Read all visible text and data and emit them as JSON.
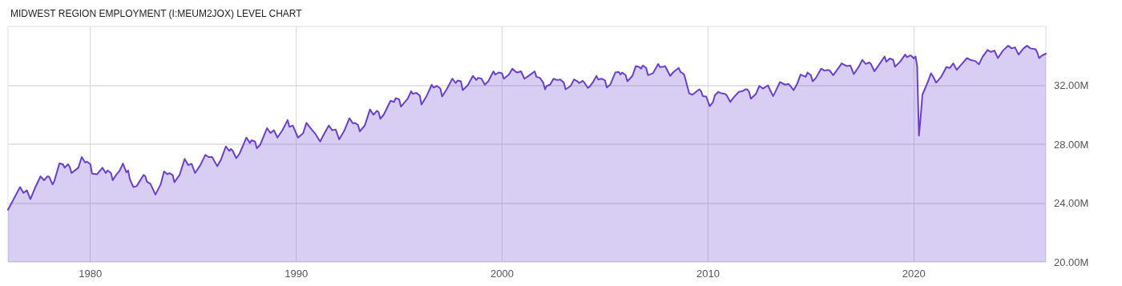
{
  "chart_data": {
    "type": "area",
    "title": "MIDWEST REGION EMPLOYMENT (I:MEUM2JOX) LEVEL CHART",
    "x": [
      "1976-01",
      "1976-08",
      "1976-10",
      "1976-12",
      "1977-02",
      "1977-05",
      "1977-08",
      "1977-10",
      "1977-12",
      "1978-01",
      "1978-03",
      "1978-04",
      "1978-07",
      "1978-09",
      "1978-10",
      "1978-12",
      "1979-01",
      "1979-02",
      "1979-06",
      "1979-08",
      "1979-10",
      "1979-11",
      "1980-01",
      "1980-02",
      "1980-05",
      "1980-08",
      "1980-10",
      "1980-11",
      "1981-01",
      "1981-02",
      "1981-04",
      "1981-06",
      "1981-08",
      "1981-10",
      "1981-11",
      "1981-12",
      "1982-02",
      "1982-04",
      "1982-08",
      "1982-09",
      "1982-10",
      "1982-12",
      "1983-03",
      "1983-06",
      "1983-08",
      "1983-10",
      "1983-11",
      "1984-01",
      "1984-02",
      "1984-05",
      "1984-08",
      "1984-10",
      "1984-12",
      "1985-02",
      "1985-05",
      "1985-08",
      "1985-10",
      "1985-12",
      "1986-01",
      "1986-03",
      "1986-05",
      "1986-08",
      "1986-10",
      "1986-11",
      "1986-12",
      "1987-02",
      "1987-04",
      "1987-08",
      "1987-10",
      "1987-11",
      "1988-01",
      "1988-02",
      "1988-04",
      "1988-08",
      "1988-10",
      "1988-12",
      "1989-02",
      "1989-05",
      "1989-08",
      "1989-09",
      "1989-11",
      "1990-02",
      "1990-05",
      "1990-07",
      "1990-10",
      "1990-12",
      "1991-03",
      "1991-05",
      "1991-08",
      "1991-10",
      "1991-12",
      "1992-02",
      "1992-05",
      "1992-08",
      "1992-10",
      "1992-11",
      "1993-01",
      "1993-02",
      "1993-05",
      "1993-08",
      "1993-10",
      "1993-12",
      "1994-01",
      "1994-02",
      "1994-04",
      "1994-08",
      "1994-10",
      "1994-11",
      "1995-01",
      "1995-02",
      "1995-06",
      "1995-08",
      "1995-09",
      "1995-11",
      "1996-01",
      "1996-02",
      "1996-05",
      "1996-08",
      "1996-09",
      "1996-11",
      "1997-01",
      "1997-02",
      "1997-05",
      "1997-08",
      "1997-10",
      "1997-11",
      "1998-01",
      "1998-02",
      "1998-05",
      "1998-08",
      "1998-10",
      "1998-11",
      "1999-01",
      "1999-03",
      "1999-05",
      "1999-08",
      "1999-09",
      "1999-11",
      "2000-01",
      "2000-02",
      "2000-05",
      "2000-07",
      "2000-09",
      "2000-10",
      "2000-12",
      "2001-02",
      "2001-05",
      "2001-08",
      "2001-09",
      "2001-11",
      "2002-01",
      "2002-02",
      "2002-03",
      "2002-05",
      "2002-07",
      "2002-09",
      "2002-11",
      "2003-01",
      "2003-02",
      "2003-05",
      "2003-07",
      "2003-09",
      "2003-10",
      "2003-12",
      "2004-01",
      "2004-03",
      "2004-04",
      "2004-06",
      "2004-08",
      "2004-09",
      "2004-11",
      "2005-01",
      "2005-02",
      "2005-04",
      "2005-07",
      "2005-09",
      "2005-10",
      "2005-11",
      "2006-01",
      "2006-02",
      "2006-05",
      "2006-07",
      "2006-09",
      "2006-10",
      "2006-11",
      "2007-01",
      "2007-02",
      "2007-05",
      "2007-08",
      "2007-09",
      "2007-11",
      "2007-12",
      "2008-01",
      "2008-03",
      "2008-05",
      "2008-08",
      "2008-09",
      "2008-11",
      "2008-12",
      "2009-02",
      "2009-04",
      "2009-06",
      "2009-08",
      "2009-09",
      "2009-10",
      "2009-12",
      "2010-02",
      "2010-04",
      "2010-05",
      "2010-07",
      "2010-09",
      "2010-11",
      "2010-12",
      "2011-02",
      "2011-04",
      "2011-07",
      "2011-09",
      "2011-11",
      "2011-12",
      "2012-01",
      "2012-02",
      "2012-05",
      "2012-07",
      "2012-09",
      "2012-12",
      "2013-01",
      "2013-03",
      "2013-04",
      "2013-07",
      "2013-10",
      "2013-12",
      "2014-01",
      "2014-03",
      "2014-05",
      "2014-07",
      "2014-10",
      "2014-11",
      "2015-01",
      "2015-02",
      "2015-04",
      "2015-07",
      "2015-09",
      "2015-11",
      "2015-12",
      "2016-02",
      "2016-04",
      "2016-07",
      "2016-09",
      "2016-10",
      "2016-12",
      "2017-02",
      "2017-05",
      "2017-07",
      "2017-09",
      "2017-11",
      "2017-12",
      "2018-02",
      "2018-04",
      "2018-08",
      "2018-09",
      "2018-11",
      "2019-01",
      "2019-02",
      "2019-05",
      "2019-08",
      "2019-09",
      "2019-11",
      "2019-12",
      "2020-01",
      "2020-02",
      "2020-03",
      "2020-04",
      "2020-05",
      "2020-06",
      "2020-09",
      "2020-11",
      "2020-12",
      "2021-02",
      "2021-05",
      "2021-08",
      "2021-10",
      "2021-12",
      "2022-02",
      "2022-05",
      "2022-08",
      "2022-10",
      "2023-01",
      "2023-03",
      "2023-05",
      "2023-08",
      "2023-10",
      "2023-12",
      "2024-02",
      "2024-05",
      "2024-08",
      "2024-10",
      "2024-12",
      "2025-02",
      "2025-05",
      "2025-07",
      "2025-09",
      "2025-12",
      "2026-01",
      "2026-02",
      "2026-04",
      "2026-06"
    ],
    "series": [
      {
        "color": "#6a3fcf",
        "values": [
          23.55,
          25.09,
          24.69,
          24.87,
          24.27,
          25.09,
          25.82,
          25.55,
          25.82,
          25.78,
          25.27,
          25.49,
          26.69,
          26.64,
          26.4,
          26.64,
          26.45,
          26.04,
          26.4,
          27.13,
          26.76,
          26.82,
          26.64,
          26.0,
          25.96,
          26.4,
          26.04,
          26.22,
          26.04,
          25.55,
          25.91,
          26.18,
          26.69,
          26.09,
          26.22,
          25.64,
          25.09,
          25.15,
          25.91,
          25.82,
          25.45,
          25.31,
          24.58,
          25.27,
          26.15,
          25.96,
          26.04,
          25.91,
          25.42,
          25.91,
          27.0,
          26.58,
          26.67,
          26.04,
          26.55,
          27.27,
          27.13,
          27.13,
          26.91,
          26.51,
          26.91,
          27.85,
          27.55,
          27.67,
          27.55,
          27.05,
          27.36,
          28.45,
          28.09,
          28.27,
          28.18,
          27.73,
          27.96,
          29.09,
          28.76,
          28.95,
          28.45,
          28.95,
          29.64,
          29.18,
          29.27,
          28.45,
          28.73,
          29.45,
          29.0,
          28.73,
          28.18,
          28.64,
          29.27,
          28.95,
          29.0,
          28.33,
          28.91,
          29.76,
          29.42,
          29.45,
          29.31,
          28.87,
          29.27,
          30.36,
          30.0,
          30.27,
          30.18,
          29.73,
          30.0,
          30.95,
          30.87,
          31.13,
          31.05,
          30.55,
          31.09,
          31.6,
          31.42,
          31.49,
          31.31,
          30.69,
          31.27,
          32.04,
          31.85,
          31.96,
          31.78,
          31.24,
          31.78,
          32.45,
          32.15,
          32.33,
          32.27,
          31.67,
          32.0,
          32.64,
          32.36,
          32.51,
          32.45,
          32.04,
          32.27,
          32.95,
          32.73,
          32.87,
          32.82,
          32.45,
          32.73,
          33.13,
          32.91,
          32.87,
          32.95,
          32.45,
          32.69,
          32.95,
          32.58,
          32.51,
          32.18,
          31.73,
          31.96,
          32.04,
          32.45,
          32.36,
          32.4,
          32.18,
          31.73,
          31.96,
          32.4,
          32.27,
          32.15,
          32.31,
          32.18,
          31.82,
          31.91,
          32.22,
          32.64,
          32.4,
          32.45,
          32.33,
          31.85,
          32.04,
          32.87,
          32.91,
          32.73,
          32.87,
          32.69,
          32.27,
          32.64,
          33.31,
          33.24,
          33.13,
          33.35,
          33.18,
          32.69,
          32.82,
          33.45,
          33.24,
          33.27,
          33.31,
          33.09,
          32.64,
          32.91,
          33.18,
          32.91,
          32.76,
          32.36,
          31.45,
          31.36,
          31.55,
          31.73,
          31.6,
          31.27,
          31.24,
          30.58,
          30.87,
          31.31,
          31.55,
          31.45,
          31.42,
          31.31,
          30.87,
          31.18,
          31.55,
          31.6,
          31.73,
          31.73,
          31.55,
          31.09,
          31.42,
          31.96,
          31.78,
          32.0,
          31.73,
          31.27,
          31.49,
          32.22,
          32.04,
          32.09,
          31.96,
          31.67,
          32.09,
          32.73,
          32.58,
          32.87,
          32.69,
          32.27,
          32.51,
          33.13,
          33.0,
          33.05,
          33.0,
          32.69,
          33.0,
          33.49,
          33.36,
          33.31,
          33.35,
          32.76,
          33.27,
          33.73,
          33.45,
          33.55,
          33.45,
          32.95,
          33.27,
          33.96,
          33.6,
          33.82,
          33.73,
          33.27,
          33.6,
          34.09,
          33.91,
          34.04,
          33.96,
          33.82,
          33.96,
          33.27,
          28.58,
          29.82,
          31.36,
          32.18,
          32.82,
          32.64,
          32.18,
          32.58,
          33.24,
          33.18,
          33.49,
          33.05,
          33.45,
          33.85,
          33.73,
          33.64,
          33.42,
          33.91,
          34.4,
          34.27,
          34.36,
          33.85,
          34.36,
          34.69,
          34.51,
          34.58,
          34.09,
          34.51,
          34.69,
          34.51,
          34.45,
          34.22,
          33.85,
          34.04,
          34.15
        ]
      }
    ],
    "xlim": [
      "1976-01",
      "2026-06"
    ],
    "xticks": [
      "1980",
      "1990",
      "2000",
      "2010",
      "2020"
    ],
    "ylim": [
      20,
      36
    ],
    "yticks": [
      {
        "value": 20,
        "label": "20.00M"
      },
      {
        "value": 24,
        "label": "24.00M"
      },
      {
        "value": 28,
        "label": "28.00M"
      },
      {
        "value": 32,
        "label": "32.00M"
      }
    ],
    "grid": true,
    "marker": "none",
    "line_style": "solid"
  }
}
